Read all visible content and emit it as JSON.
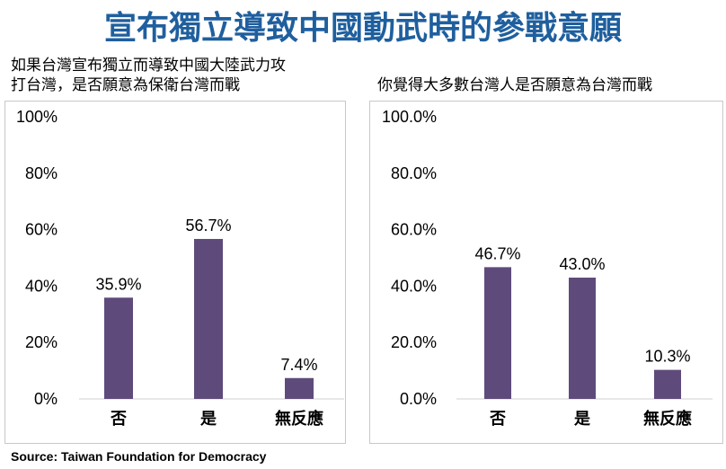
{
  "title": "宣布獨立導致中國動武時的參戰意願",
  "source": "Source: Taiwan Foundation for Democracy",
  "colors": {
    "bar": "#5e4b7b",
    "title": "#1f5f9e"
  },
  "chart_data": [
    {
      "type": "bar",
      "title": "如果台灣宣布獨立而導致中國大陸武力攻打台灣，是否願意為保衛台灣而戰",
      "title_lines": [
        "如果台灣宣布獨立而導致中國大陸武力攻",
        "打台灣，是否願意為保衛台灣而戰"
      ],
      "categories": [
        "否",
        "是",
        "無反應"
      ],
      "values": [
        35.9,
        56.7,
        7.4
      ],
      "data_labels": [
        "35.9%",
        "56.7%",
        "7.4%"
      ],
      "yticks": [
        "0%",
        "20%",
        "40%",
        "60%",
        "80%",
        "100%"
      ],
      "ylim": [
        0,
        100
      ],
      "grid": false
    },
    {
      "type": "bar",
      "title": "你覺得大多數台灣人是否願意為台灣而戰",
      "title_lines": [
        "你覺得大多數台灣人是否願意為台灣而戰"
      ],
      "categories": [
        "否",
        "是",
        "無反應"
      ],
      "values": [
        46.7,
        43.0,
        10.3
      ],
      "data_labels": [
        "46.7%",
        "43.0%",
        "10.3%"
      ],
      "yticks": [
        "0.0%",
        "20.0%",
        "40.0%",
        "60.0%",
        "80.0%",
        "100.0%"
      ],
      "ylim": [
        0,
        100
      ],
      "grid": false
    }
  ]
}
